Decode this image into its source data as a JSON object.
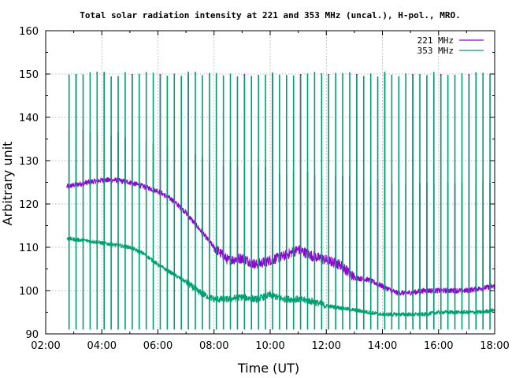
{
  "chart_data": {
    "type": "line",
    "title": "Total solar radiation intensity at 221 and 353 MHz (uncal.), H-pol., MRO.",
    "xlabel": "Time (UT)",
    "ylabel": "Arbitrary unit",
    "xlim": [
      "02:00",
      "18:00"
    ],
    "ylim": [
      90,
      160
    ],
    "x_ticks": [
      "02:00",
      "04:00",
      "06:00",
      "08:00",
      "10:00",
      "12:00",
      "14:00",
      "16:00",
      "18:00"
    ],
    "y_ticks": [
      90,
      100,
      110,
      120,
      130,
      140,
      150,
      160
    ],
    "grid": true,
    "legend_position": "top-right",
    "colors": {
      "221": "#9400d3",
      "353": "#009e73"
    },
    "series": [
      {
        "name": "221 MHz",
        "x": [
          "02:45",
          "03:30",
          "04:00",
          "04:30",
          "05:00",
          "05:30",
          "06:00",
          "06:30",
          "07:00",
          "07:30",
          "08:00",
          "08:30",
          "09:00",
          "09:30",
          "10:00",
          "10:30",
          "11:00",
          "11:30",
          "12:00",
          "12:30",
          "13:00",
          "13:30",
          "14:00",
          "14:30",
          "15:00",
          "15:30",
          "16:00",
          "16:30",
          "17:00",
          "17:30",
          "18:00"
        ],
        "y": [
          124,
          125,
          125.5,
          125.5,
          125,
          124,
          123,
          121,
          118,
          114,
          110,
          107,
          107.5,
          106,
          107,
          108,
          109.5,
          108,
          107,
          106,
          103,
          102.5,
          101,
          99.5,
          99.5,
          100,
          100,
          100,
          100,
          100.5,
          101
        ],
        "spikes": {
          "interval_minutes": 15,
          "top_values": [
            137,
            137,
            137,
            136,
            135,
            134,
            134,
            133,
            132,
            131,
            130,
            129,
            128,
            128,
            128,
            127,
            127,
            127,
            126,
            126,
            126,
            126,
            125,
            125,
            125,
            125,
            125,
            125,
            125,
            125,
            125
          ]
        }
      },
      {
        "name": "353 MHz",
        "x": [
          "02:45",
          "03:30",
          "04:00",
          "04:30",
          "05:00",
          "05:30",
          "06:00",
          "06:30",
          "07:00",
          "07:30",
          "08:00",
          "08:30",
          "09:00",
          "09:30",
          "10:00",
          "10:30",
          "11:00",
          "11:30",
          "12:00",
          "12:30",
          "13:00",
          "13:30",
          "14:00",
          "14:30",
          "15:00",
          "15:30",
          "16:00",
          "16:30",
          "17:00",
          "17:30",
          "18:00"
        ],
        "y": [
          112,
          111.5,
          111,
          110.5,
          110,
          108.5,
          106,
          104,
          102,
          99.5,
          98,
          98,
          98.5,
          98,
          99,
          98,
          98,
          97.5,
          96.5,
          96,
          95.5,
          95,
          94.5,
          94.5,
          94.5,
          94.5,
          95,
          95,
          95,
          95,
          95.5
        ],
        "spikes": {
          "interval_minutes": 15,
          "top_value": 150,
          "bottom_value": 91
        }
      }
    ]
  }
}
